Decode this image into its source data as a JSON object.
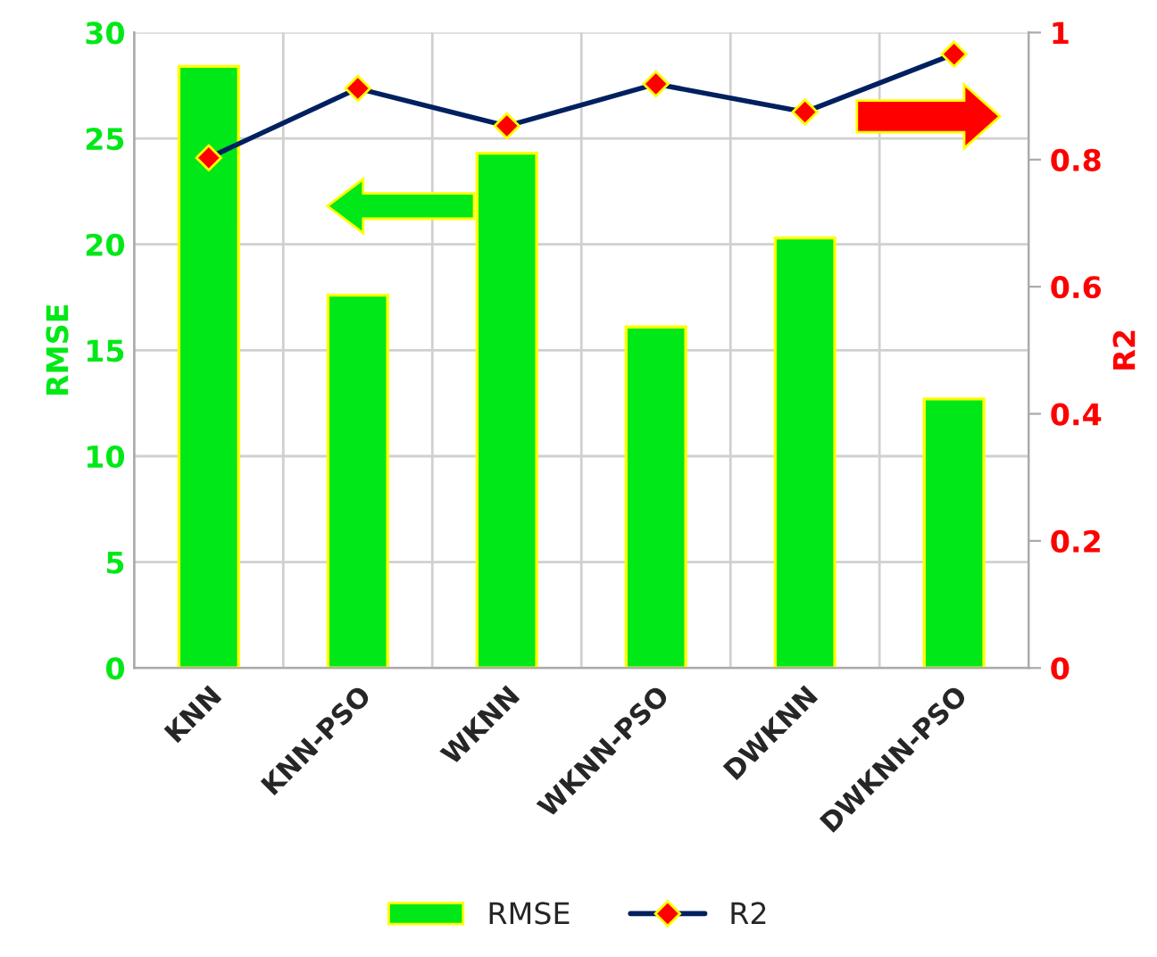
{
  "chart_data": {
    "type": "bar",
    "categories": [
      "KNN",
      "KNN-PSO",
      "WKNN",
      "WKNN-PSO",
      "DWKNN",
      "DWKNN-PSO"
    ],
    "ylabel": "RMSE",
    "y2label": "R2",
    "series": [
      {
        "name": "RMSE",
        "color": "#00e817",
        "values": [
          28.4,
          17.6,
          24.3,
          16.1,
          20.3,
          12.7
        ]
      },
      {
        "name": "R2",
        "type": "line",
        "axis": "y2",
        "color": "#002060",
        "marker": "diamond",
        "values": [
          0.803,
          0.912,
          0.853,
          0.919,
          0.875,
          0.966
        ]
      }
    ],
    "ylim": [
      0,
      30
    ],
    "yticks": [
      0,
      5,
      10,
      15,
      20,
      25,
      30
    ],
    "y2lim": [
      0,
      1
    ],
    "y2ticks": [
      {
        "value": 0,
        "label": "0"
      },
      {
        "value": 0.2,
        "label": "0.2"
      },
      {
        "value": 0.4,
        "label": "0.4"
      },
      {
        "value": 0.6,
        "label": "0.6"
      },
      {
        "value": 0.8,
        "label": "0.8"
      },
      {
        "value": 1,
        "label": "1"
      }
    ],
    "grid": true,
    "legend": "bottom"
  }
}
